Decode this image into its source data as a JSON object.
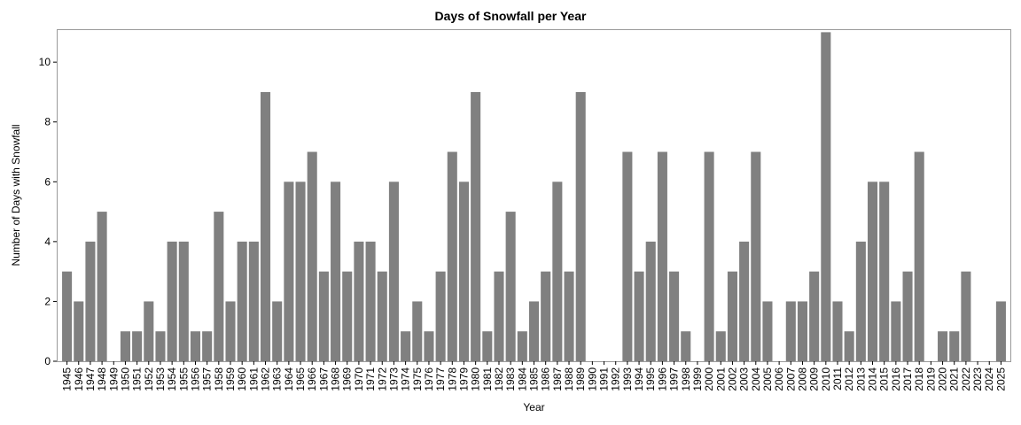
{
  "chart_data": {
    "type": "bar",
    "title": "Days of Snowfall per Year",
    "xlabel": "Year",
    "ylabel": "Number of Days with Snowfall",
    "ylim": [
      0,
      11.1
    ],
    "yticks": [
      0,
      2,
      4,
      6,
      8,
      10
    ],
    "bar_color": "#808080",
    "grid": false,
    "categories": [
      "1945",
      "1946",
      "1947",
      "1948",
      "1949",
      "1950",
      "1951",
      "1952",
      "1953",
      "1954",
      "1955",
      "1956",
      "1957",
      "1958",
      "1959",
      "1960",
      "1961",
      "1962",
      "1963",
      "1964",
      "1965",
      "1966",
      "1967",
      "1968",
      "1969",
      "1970",
      "1971",
      "1972",
      "1973",
      "1974",
      "1975",
      "1976",
      "1977",
      "1978",
      "1979",
      "1980",
      "1981",
      "1982",
      "1983",
      "1984",
      "1985",
      "1986",
      "1987",
      "1988",
      "1989",
      "1990",
      "1991",
      "1992",
      "1993",
      "1994",
      "1995",
      "1996",
      "1997",
      "1998",
      "1999",
      "2000",
      "2001",
      "2002",
      "2003",
      "2004",
      "2005",
      "2006",
      "2007",
      "2008",
      "2009",
      "2010",
      "2011",
      "2012",
      "2013",
      "2014",
      "2015",
      "2016",
      "2017",
      "2018",
      "2019",
      "2020",
      "2021",
      "2022",
      "2023",
      "2024",
      "2025"
    ],
    "values": [
      3,
      2,
      4,
      5,
      0,
      1,
      1,
      2,
      1,
      4,
      4,
      1,
      1,
      5,
      2,
      4,
      4,
      9,
      2,
      6,
      6,
      7,
      3,
      6,
      3,
      4,
      4,
      3,
      6,
      1,
      2,
      1,
      3,
      7,
      6,
      9,
      1,
      3,
      5,
      1,
      2,
      3,
      6,
      3,
      9,
      0,
      0,
      0,
      7,
      3,
      4,
      7,
      3,
      1,
      0,
      7,
      1,
      3,
      4,
      7,
      2,
      0,
      2,
      2,
      3,
      11,
      2,
      1,
      4,
      6,
      6,
      2,
      3,
      7,
      0,
      1,
      1,
      3,
      0,
      0,
      2
    ]
  }
}
